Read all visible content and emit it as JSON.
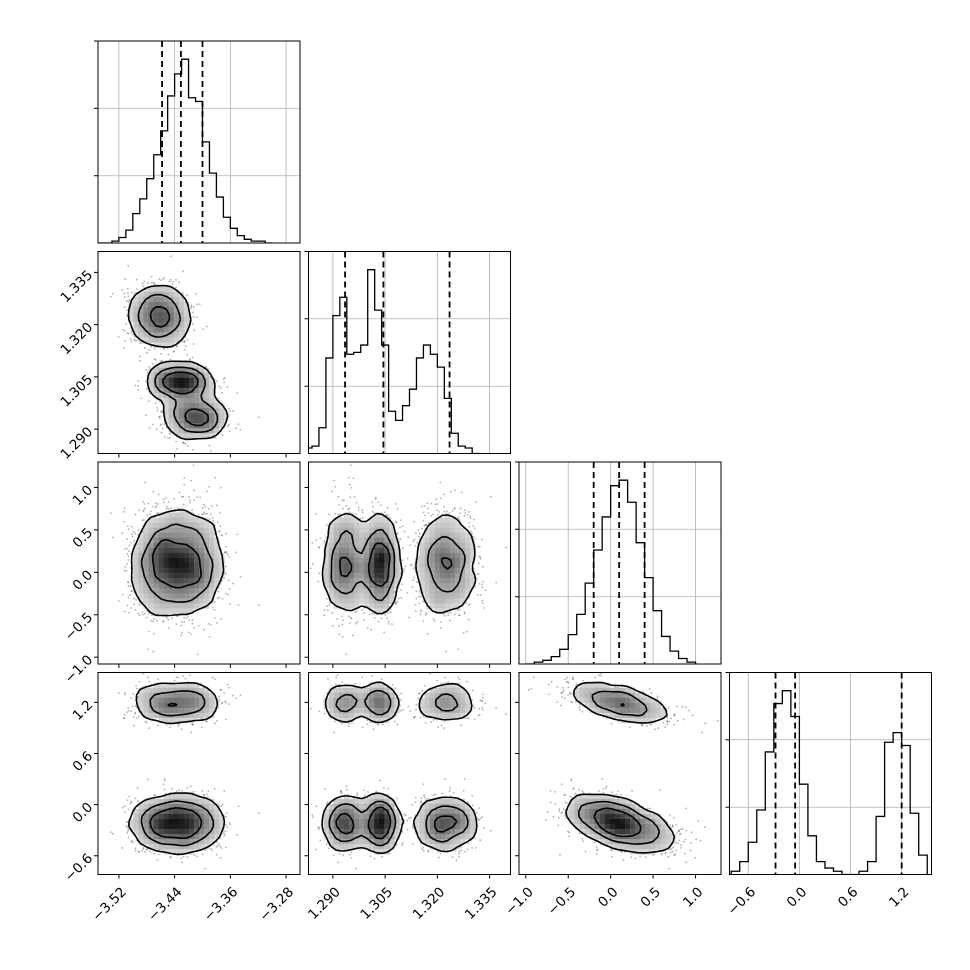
{
  "chart_data": {
    "type": "corner",
    "parameters": [
      {
        "label": "",
        "range": [
          -3.55,
          -3.26
        ],
        "ticks": [
          -3.52,
          -3.44,
          -3.36,
          -3.28
        ],
        "tick_labels": [
          "−3.52",
          "−3.44",
          "−3.36",
          "−3.28"
        ]
      },
      {
        "label": "",
        "range": [
          1.283,
          1.341
        ],
        "ticks": [
          1.29,
          1.305,
          1.32,
          1.335
        ],
        "tick_labels": [
          "1.290",
          "1.305",
          "1.320",
          "1.335"
        ]
      },
      {
        "label": "",
        "range": [
          -1.08,
          1.3
        ],
        "ticks": [
          -1.0,
          -0.5,
          0.0,
          0.5,
          1.0
        ],
        "tick_labels": [
          "−1.0",
          "−0.5",
          "0.0",
          "0.5",
          "1.0"
        ]
      },
      {
        "label": "",
        "range": [
          -0.82,
          1.55
        ],
        "ticks": [
          -0.6,
          0.0,
          0.6,
          1.2
        ],
        "tick_labels": [
          "−0.6",
          "0.0",
          "0.6",
          "1.2"
        ]
      }
    ],
    "quantiles": [
      [
        -3.458,
        -3.431,
        -3.4
      ],
      [
        1.2935,
        1.3045,
        1.3235
      ],
      [
        -0.2,
        0.1,
        0.4
      ],
      [
        -0.28,
        -0.05,
        1.2
      ]
    ],
    "histograms": [
      {
        "edges": [
          -3.55,
          -3.53,
          -3.52,
          -3.51,
          -3.5,
          -3.49,
          -3.48,
          -3.47,
          -3.46,
          -3.45,
          -3.44,
          -3.43,
          -3.42,
          -3.41,
          -3.4,
          -3.39,
          -3.38,
          -3.37,
          -3.36,
          -3.35,
          -3.34,
          -3.33,
          -3.32,
          -3.31,
          -3.3
        ],
        "counts": [
          0.0,
          0.01,
          0.03,
          0.07,
          0.16,
          0.24,
          0.35,
          0.48,
          0.61,
          0.8,
          0.92,
          1.0,
          0.79,
          0.77,
          0.55,
          0.38,
          0.25,
          0.14,
          0.08,
          0.04,
          0.02,
          0.01,
          0.01,
          0.0
        ]
      },
      {
        "edges": [
          1.282,
          1.284,
          1.286,
          1.288,
          1.29,
          1.292,
          1.294,
          1.296,
          1.298,
          1.3,
          1.302,
          1.304,
          1.306,
          1.308,
          1.31,
          1.312,
          1.314,
          1.316,
          1.318,
          1.32,
          1.322,
          1.324,
          1.326,
          1.328,
          1.33,
          1.332
        ],
        "counts": [
          0.03,
          0.04,
          0.14,
          0.52,
          0.75,
          0.85,
          0.54,
          0.55,
          0.59,
          1.0,
          0.78,
          0.59,
          0.23,
          0.18,
          0.26,
          0.35,
          0.52,
          0.59,
          0.54,
          0.47,
          0.3,
          0.11,
          0.04,
          0.03,
          0.0
        ]
      },
      {
        "edges": [
          -1.0,
          -0.9,
          -0.8,
          -0.7,
          -0.6,
          -0.5,
          -0.4,
          -0.3,
          -0.2,
          -0.1,
          0.0,
          0.1,
          0.2,
          0.3,
          0.4,
          0.5,
          0.6,
          0.7,
          0.8,
          0.9,
          1.0
        ],
        "counts": [
          0.0,
          0.01,
          0.02,
          0.04,
          0.08,
          0.16,
          0.27,
          0.44,
          0.62,
          0.8,
          0.97,
          1.0,
          0.88,
          0.66,
          0.47,
          0.29,
          0.15,
          0.07,
          0.03,
          0.01
        ]
      },
      {
        "edges": [
          -0.8,
          -0.7,
          -0.6,
          -0.5,
          -0.4,
          -0.3,
          -0.2,
          -0.1,
          0.0,
          0.1,
          0.2,
          0.3,
          0.4,
          0.5,
          0.6,
          0.7,
          0.8,
          0.9,
          1.0,
          1.1,
          1.2,
          1.3,
          1.4,
          1.5
        ],
        "counts": [
          0.01,
          0.04,
          0.1,
          0.2,
          0.38,
          0.53,
          0.57,
          0.49,
          0.28,
          0.12,
          0.04,
          0.02,
          0.01,
          0.0,
          0.0,
          0.01,
          0.04,
          0.18,
          0.41,
          0.44,
          0.4,
          0.19,
          0.06
        ]
      }
    ],
    "modes": {
      "p0": [
        {
          "mu": -3.462,
          "sd": 0.022,
          "w": 0.38
        },
        {
          "mu": -3.432,
          "sd": 0.022,
          "w": 0.33
        },
        {
          "mu": -3.41,
          "sd": 0.022,
          "w": 0.29
        }
      ],
      "p1": [
        {
          "mu": 1.3225,
          "sd": 0.0045,
          "w": 0.38
        },
        {
          "mu": 1.3035,
          "sd": 0.0025,
          "w": 0.33
        },
        {
          "mu": 1.2935,
          "sd": 0.003,
          "w": 0.29
        }
      ],
      "p2": [
        {
          "mu": 0.1,
          "sd": 0.28,
          "w": 1.0
        }
      ],
      "p3": [
        {
          "mu": 1.2,
          "sd": 0.09,
          "w": 0.31
        },
        {
          "mu": -0.22,
          "sd": 0.13,
          "w": 0.69
        }
      ]
    },
    "contour_levels": [
      0.12,
      0.33,
      0.6,
      0.85
    ],
    "note_levels": "density contours"
  }
}
